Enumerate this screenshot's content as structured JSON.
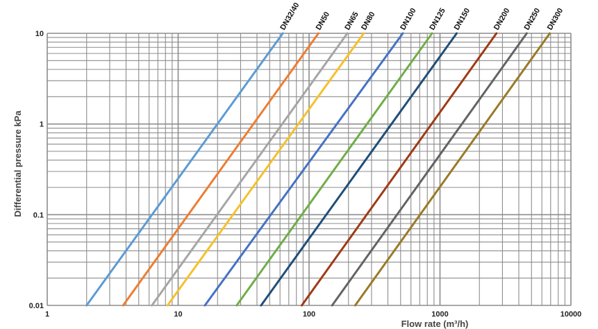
{
  "chart_data": {
    "type": "line",
    "xlabel": "Flow rate (m³/h)",
    "ylabel": "Differential pressure kPa",
    "x_scale": "log",
    "y_scale": "log",
    "xlim": [
      1,
      10000
    ],
    "ylim": [
      0.01,
      10
    ],
    "grid": true,
    "x_ticks": [
      "1",
      "10",
      "100",
      "1000",
      "10000"
    ],
    "y_ticks": [
      "0.01",
      "0.1",
      "1",
      "10"
    ],
    "series": [
      {
        "name": "DN32/40",
        "color": "#5b9bd5",
        "x": [
          2,
          63
        ],
        "y": [
          0.01,
          10
        ]
      },
      {
        "name": "DN50",
        "color": "#ed7d31",
        "x": [
          3.8,
          118
        ],
        "y": [
          0.01,
          10
        ]
      },
      {
        "name": "DN65",
        "color": "#a5a5a5",
        "x": [
          6.3,
          196
        ],
        "y": [
          0.01,
          10
        ]
      },
      {
        "name": "DN80",
        "color": "#f5c02c",
        "x": [
          8.3,
          262
        ],
        "y": [
          0.01,
          10
        ]
      },
      {
        "name": "DN100",
        "color": "#4472c4",
        "x": [
          16,
          520
        ],
        "y": [
          0.01,
          10
        ]
      },
      {
        "name": "DN125",
        "color": "#70ad47",
        "x": [
          28,
          870
        ],
        "y": [
          0.01,
          10
        ]
      },
      {
        "name": "DN150",
        "color": "#1f4e79",
        "x": [
          43,
          1340
        ],
        "y": [
          0.01,
          10
        ]
      },
      {
        "name": "DN200",
        "color": "#9e3a14",
        "x": [
          88,
          2700
        ],
        "y": [
          0.01,
          10
        ]
      },
      {
        "name": "DN250",
        "color": "#636363",
        "x": [
          150,
          4600
        ],
        "y": [
          0.01,
          10
        ]
      },
      {
        "name": "DN300",
        "color": "#997a26",
        "x": [
          225,
          6900
        ],
        "y": [
          0.01,
          10
        ]
      }
    ]
  }
}
